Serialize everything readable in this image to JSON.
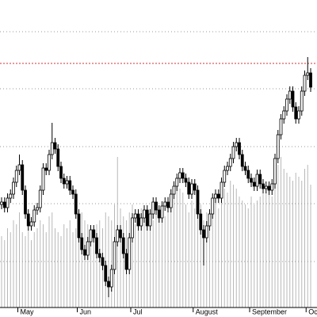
{
  "chart_data": {
    "type": "candlestick",
    "categories": [
      null,
      null,
      null,
      null,
      null,
      null,
      "May",
      null,
      null,
      null,
      null,
      null,
      null,
      null,
      null,
      null,
      null,
      null,
      null,
      null,
      null,
      null,
      null,
      null,
      null,
      null,
      "Jun",
      null,
      null,
      null,
      null,
      null,
      null,
      null,
      null,
      null,
      null,
      null,
      null,
      null,
      null,
      null,
      null,
      null,
      "Jul",
      null,
      null,
      null,
      null,
      null,
      null,
      null,
      null,
      null,
      null,
      null,
      null,
      null,
      null,
      null,
      null,
      null,
      null,
      null,
      null,
      "August",
      null,
      null,
      null,
      null,
      null,
      null,
      null,
      null,
      null,
      null,
      null,
      null,
      null,
      null,
      null,
      null,
      null,
      null,
      "September",
      null,
      null,
      null,
      null,
      null,
      null,
      null,
      null,
      null,
      null,
      null,
      null,
      null,
      null,
      null,
      null,
      null,
      null,
      "October",
      null
    ],
    "open": [
      142,
      145,
      138,
      150,
      155,
      170,
      185,
      192,
      160,
      130,
      115,
      120,
      135,
      138,
      160,
      188,
      185,
      205,
      220,
      212,
      190,
      175,
      168,
      172,
      160,
      155,
      130,
      100,
      85,
      78,
      95,
      110,
      100,
      80,
      75,
      65,
      45,
      38,
      60,
      95,
      110,
      100,
      80,
      60,
      100,
      125,
      130,
      115,
      125,
      135,
      115,
      130,
      145,
      135,
      125,
      140,
      145,
      138,
      155,
      165,
      175,
      182,
      175,
      170,
      155,
      168,
      160,
      130,
      110,
      100,
      115,
      130,
      150,
      155,
      150,
      170,
      185,
      190,
      200,
      215,
      220,
      205,
      190,
      185,
      175,
      170,
      165,
      180,
      168,
      162,
      165,
      160,
      168,
      200,
      230,
      250,
      260,
      275,
      285,
      265,
      250,
      260,
      285,
      305,
      308
    ],
    "high": [
      151,
      151,
      156,
      161,
      176,
      191,
      205,
      198,
      166,
      136,
      126,
      141,
      144,
      166,
      194,
      194,
      211,
      245,
      226,
      218,
      196,
      181,
      178,
      178,
      166,
      161,
      136,
      106,
      91,
      101,
      116,
      116,
      106,
      86,
      81,
      71,
      51,
      66,
      101,
      116,
      116,
      106,
      86,
      106,
      131,
      136,
      136,
      131,
      141,
      141,
      136,
      151,
      151,
      141,
      146,
      151,
      151,
      161,
      171,
      181,
      188,
      188,
      181,
      176,
      174,
      174,
      166,
      136,
      116,
      121,
      136,
      156,
      161,
      161,
      176,
      191,
      196,
      206,
      221,
      226,
      226,
      211,
      196,
      191,
      181,
      176,
      186,
      186,
      174,
      171,
      171,
      174,
      206,
      236,
      256,
      266,
      281,
      291,
      291,
      271,
      266,
      291,
      311,
      328,
      314
    ],
    "low": [
      136,
      132,
      132,
      144,
      149,
      164,
      179,
      154,
      124,
      109,
      109,
      114,
      129,
      132,
      154,
      179,
      179,
      199,
      206,
      184,
      169,
      162,
      162,
      154,
      149,
      124,
      94,
      79,
      72,
      72,
      89,
      94,
      74,
      69,
      59,
      39,
      25,
      32,
      54,
      89,
      94,
      74,
      54,
      54,
      94,
      119,
      109,
      109,
      119,
      109,
      109,
      124,
      129,
      119,
      119,
      134,
      132,
      132,
      149,
      159,
      169,
      169,
      164,
      149,
      149,
      154,
      124,
      104,
      65,
      94,
      109,
      124,
      144,
      144,
      144,
      164,
      179,
      184,
      194,
      209,
      199,
      184,
      179,
      169,
      164,
      159,
      159,
      162,
      156,
      156,
      154,
      154,
      162,
      194,
      224,
      244,
      254,
      269,
      259,
      244,
      244,
      254,
      279,
      299,
      284
    ],
    "close": [
      145,
      138,
      150,
      155,
      170,
      185,
      192,
      160,
      130,
      115,
      120,
      135,
      138,
      160,
      188,
      185,
      205,
      220,
      212,
      190,
      175,
      168,
      172,
      160,
      155,
      130,
      100,
      85,
      78,
      95,
      110,
      100,
      80,
      75,
      65,
      45,
      38,
      60,
      95,
      110,
      100,
      80,
      60,
      100,
      125,
      130,
      115,
      125,
      135,
      115,
      130,
      145,
      135,
      125,
      140,
      145,
      138,
      155,
      165,
      175,
      182,
      175,
      170,
      155,
      168,
      160,
      130,
      110,
      100,
      115,
      130,
      150,
      155,
      150,
      170,
      185,
      190,
      200,
      215,
      220,
      205,
      190,
      185,
      175,
      170,
      165,
      180,
      168,
      162,
      165,
      160,
      168,
      200,
      230,
      250,
      260,
      275,
      285,
      265,
      250,
      260,
      285,
      305,
      308,
      290
    ],
    "volume": [
      90,
      85,
      100,
      95,
      110,
      105,
      120,
      95,
      90,
      100,
      85,
      95,
      100,
      110,
      105,
      95,
      115,
      120,
      100,
      95,
      90,
      105,
      100,
      110,
      95,
      100,
      115,
      120,
      110,
      105,
      100,
      95,
      105,
      110,
      100,
      120,
      115,
      110,
      130,
      190,
      125,
      115,
      110,
      120,
      130,
      105,
      110,
      125,
      115,
      120,
      100,
      110,
      130,
      125,
      120,
      115,
      140,
      150,
      160,
      165,
      150,
      145,
      130,
      120,
      135,
      125,
      140,
      130,
      110,
      120,
      115,
      130,
      135,
      125,
      140,
      150,
      145,
      160,
      155,
      150,
      140,
      135,
      130,
      125,
      140,
      130,
      135,
      140,
      150,
      145,
      155,
      140,
      165,
      180,
      190,
      175,
      170,
      165,
      160,
      170,
      165,
      160,
      175,
      180,
      155
    ],
    "ylim": [
      12,
      400
    ],
    "yticks": [
      70,
      143,
      215,
      288,
      360
    ],
    "volume_ylim": [
      0,
      200
    ],
    "reference_line": 320,
    "reference_color": "#d03030",
    "up_color": "#ffffff",
    "down_color": "#000000",
    "volume_color": "#b8b8b8",
    "grid_color": "#999999",
    "grid": true
  }
}
